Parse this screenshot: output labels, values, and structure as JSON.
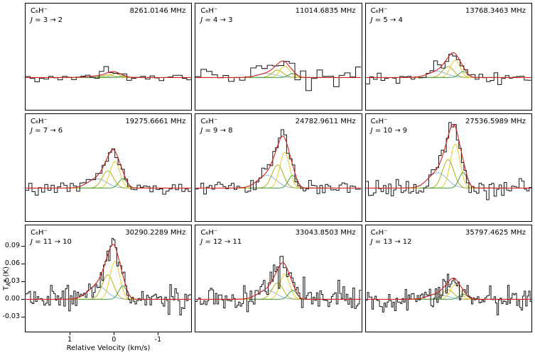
{
  "chart_data": {
    "type": "line",
    "description": "3x3 grid of C6H- rotational transition spectra with hyperfine Gaussian component fits",
    "xlabel": "Relative Velocity (km/s)",
    "ylabel": {
      "t": "T",
      "sub": "A",
      "rest": "* (K)"
    },
    "axes": {
      "x_left": 2.0,
      "x_right": -1.75,
      "y_min": -0.055,
      "y_max": 0.125,
      "x_ticks": [
        {
          "label": "1",
          "value": 1
        },
        {
          "label": "0",
          "value": 0
        },
        {
          "label": "-1",
          "value": -1
        }
      ],
      "y_ticks": [
        {
          "label": "0.09",
          "value": 0.09
        },
        {
          "label": "0.06",
          "value": 0.06
        },
        {
          "label": "0.03",
          "value": 0.03
        },
        {
          "label": "0.00",
          "value": 0.0
        },
        {
          "label": "-0.03",
          "value": -0.03
        }
      ]
    },
    "colors": {
      "data": "#151515",
      "fit": "#d42020",
      "components": [
        "#8fbbd9",
        "#b3ad1f",
        "#e3cf1e",
        "#3f9e43"
      ]
    },
    "components": [
      {
        "name": "hf-component-blue",
        "center_kms": 0.38,
        "fwhm_kms": 0.5,
        "rel_amp": 0.3,
        "color": "#8fbbd9"
      },
      {
        "name": "hf-component-olive",
        "center_kms": 0.14,
        "fwhm_kms": 0.3,
        "rel_amp": 0.55,
        "color": "#b3ad1f"
      },
      {
        "name": "hf-component-yellow",
        "center_kms": -0.02,
        "fwhm_kms": 0.26,
        "rel_amp": 0.85,
        "color": "#e3cf1e"
      },
      {
        "name": "hf-component-green",
        "center_kms": -0.2,
        "fwhm_kms": 0.22,
        "rel_amp": 0.3,
        "color": "#3f9e43"
      }
    ],
    "panels": [
      {
        "molecule": "C₆H⁻",
        "transition": "J = 3 → 2",
        "frequency": "8261.0146 MHz",
        "peak_ta_k": 0.01,
        "noise_rms_k": 0.0035,
        "channels": 36,
        "seed": 3
      },
      {
        "molecule": "C₆H⁻",
        "transition": "J = 4 → 3",
        "frequency": "11014.6835 MHz",
        "peak_ta_k": 0.028,
        "noise_rms_k": 0.0095,
        "channels": 30,
        "seed": 14
      },
      {
        "molecule": "C₆H⁻",
        "transition": "J = 5 → 4",
        "frequency": "13768.3463 MHz",
        "peak_ta_k": 0.042,
        "noise_rms_k": 0.006,
        "channels": 44,
        "seed": 15
      },
      {
        "molecule": "C₆H⁻",
        "transition": "J = 7 → 6",
        "frequency": "19275.6661 MHz",
        "peak_ta_k": 0.065,
        "noise_rms_k": 0.005,
        "channels": 52,
        "seed": 92
      },
      {
        "molecule": "C₆H⁻",
        "transition": "J = 9 → 8",
        "frequency": "24782.9611 MHz",
        "peak_ta_k": 0.088,
        "noise_rms_k": 0.006,
        "channels": 60,
        "seed": 65
      },
      {
        "molecule": "C₆H⁻",
        "transition": "J = 10 → 9",
        "frequency": "27536.5989 MHz",
        "peak_ta_k": 0.108,
        "noise_rms_k": 0.009,
        "channels": 66,
        "seed": 35
      },
      {
        "molecule": "C₆H⁻",
        "transition": "J = 11 → 10",
        "frequency": "30290.2289 MHz",
        "peak_ta_k": 0.093,
        "noise_rms_k": 0.011,
        "channels": 100,
        "seed": 89
      },
      {
        "molecule": "C₆H⁻",
        "transition": "J = 12 → 11",
        "frequency": "33043.8503 MHz",
        "peak_ta_k": 0.062,
        "noise_rms_k": 0.01,
        "channels": 100,
        "seed": 79
      },
      {
        "molecule": "C₆H⁻",
        "transition": "J = 13 → 12",
        "frequency": "35797.4625 MHz",
        "peak_ta_k": 0.036,
        "noise_rms_k": 0.011,
        "channels": 110,
        "seed": 32
      }
    ]
  }
}
